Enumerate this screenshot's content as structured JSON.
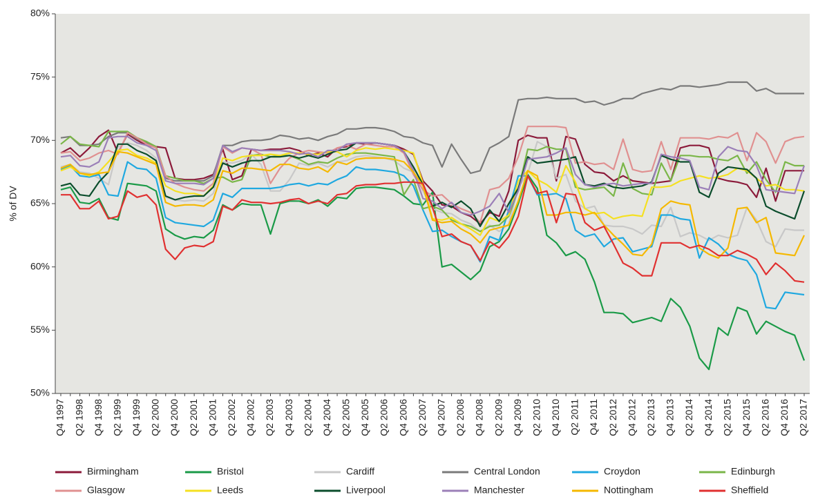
{
  "chart_data": {
    "type": "line",
    "y_label": "% of DV",
    "ylim": [
      50,
      80
    ],
    "yticks": [
      {
        "value": 50,
        "label": "50%"
      },
      {
        "value": 55,
        "label": "55%"
      },
      {
        "value": 60,
        "label": "60%"
      },
      {
        "value": 65,
        "label": "65%"
      },
      {
        "value": 70,
        "label": "70%"
      },
      {
        "value": 75,
        "label": "75%"
      },
      {
        "value": 80,
        "label": "80%"
      }
    ],
    "grid": false,
    "legend": "bottom",
    "categories": [
      "Q4 1997",
      null,
      "Q2 1998",
      null,
      "Q4 1998",
      null,
      "Q2 1999",
      null,
      "Q4 1999",
      null,
      "Q2 2000",
      null,
      "Q4 2000",
      null,
      "Q2 2001",
      null,
      "Q4 2001",
      null,
      "Q2 2002",
      null,
      "Q4 2002",
      null,
      "Q2 2003",
      null,
      "Q4 2003",
      null,
      "Q2 2004",
      null,
      "Q4 2004",
      null,
      "Q2 2005",
      null,
      "Q4 2005",
      null,
      "Q2 2006",
      null,
      "Q4 2006",
      null,
      "Q2 2007",
      null,
      "Q4 2007",
      null,
      "Q2 2008",
      null,
      "Q4 2008",
      null,
      "Q2 2009",
      null,
      "Q4 2009",
      null,
      "Q2 2010",
      null,
      "Q4 2010",
      null,
      "Q2 2011",
      null,
      "Q4 2011",
      null,
      "Q2 2012",
      null,
      "Q4 2012",
      null,
      "Q2 2013",
      null,
      "Q4 2013",
      null,
      "Q2 2014",
      null,
      "Q4 2014",
      null,
      "Q2 2015",
      null,
      "Q4 2015",
      null,
      "Q2 2016",
      null,
      "Q4 2016",
      null,
      "Q2 2017"
    ],
    "series": [
      {
        "name": "Birmingham",
        "color": "#8b1a3a",
        "values": [
          69.0,
          69.4,
          68.7,
          69.4,
          70.3,
          70.8,
          69.0,
          70.5,
          70.0,
          69.6,
          69.5,
          69.4,
          67.0,
          66.9,
          66.9,
          67.0,
          67.3,
          69.3,
          66.9,
          67.2,
          69.3,
          69.2,
          69.3,
          69.3,
          69.4,
          69.2,
          68.8,
          69.0,
          68.7,
          69.4,
          69.5,
          69.8,
          69.7,
          69.8,
          69.7,
          69.6,
          69.3,
          68.9,
          66.8,
          66.0,
          64.9,
          64.8,
          64.3,
          64.0,
          63.4,
          64.3,
          64.0,
          66.0,
          70.0,
          70.4,
          70.2,
          70.2,
          66.8,
          70.3,
          70.1,
          68.1,
          67.5,
          67.4,
          66.8,
          67.2,
          66.8,
          66.7,
          66.6,
          66.7,
          66.8,
          69.4,
          69.6,
          69.6,
          69.4,
          67.0,
          66.8,
          66.7,
          66.5,
          65.5,
          67.8,
          65.2,
          67.6,
          67.6,
          67.6
        ]
      },
      {
        "name": "Bristol",
        "color": "#1a9a47",
        "values": [
          66.1,
          66.3,
          65.1,
          65.0,
          65.4,
          63.9,
          63.7,
          66.6,
          66.5,
          66.4,
          66.0,
          63.0,
          62.5,
          62.2,
          62.4,
          62.3,
          62.9,
          64.9,
          64.5,
          65.0,
          64.9,
          64.9,
          62.6,
          65.0,
          65.2,
          65.2,
          65.0,
          65.3,
          64.8,
          65.5,
          65.4,
          66.2,
          66.3,
          66.3,
          66.2,
          66.1,
          65.6,
          65.0,
          64.9,
          65.9,
          60.0,
          60.2,
          59.6,
          59.0,
          59.7,
          61.6,
          62.0,
          63.0,
          65.0,
          67.3,
          66.2,
          62.5,
          61.9,
          60.9,
          61.2,
          60.6,
          58.8,
          56.4,
          56.4,
          56.3,
          55.6,
          55.8,
          56.0,
          55.7,
          57.5,
          56.8,
          55.3,
          52.8,
          51.9,
          55.2,
          54.6,
          56.8,
          56.5,
          54.7,
          55.7,
          55.3,
          54.9,
          54.6,
          52.6
        ]
      },
      {
        "name": "Cardiff",
        "color": "#c8c8c8",
        "values": [
          67.9,
          68.1,
          67.5,
          67.4,
          67.0,
          66.5,
          69.5,
          69.8,
          69.6,
          69.2,
          68.6,
          65.5,
          65.3,
          65.2,
          65.3,
          65.2,
          65.8,
          68.3,
          68.2,
          68.4,
          68.9,
          68.1,
          66.0,
          66.0,
          66.9,
          68.2,
          68.0,
          68.2,
          67.9,
          68.3,
          68.4,
          68.7,
          68.8,
          68.7,
          68.6,
          68.4,
          67.8,
          67.5,
          66.0,
          64.6,
          64.3,
          64.2,
          63.7,
          63.4,
          62.8,
          63.3,
          62.8,
          63.4,
          66.3,
          67.4,
          69.9,
          69.5,
          67.0,
          67.3,
          65.2,
          64.6,
          64.8,
          63.3,
          63.2,
          63.2,
          63.0,
          62.6,
          63.3,
          63.2,
          64.7,
          62.4,
          62.7,
          62.5,
          62.1,
          62.5,
          62.3,
          62.5,
          64.7,
          63.7,
          62.0,
          61.6,
          63.0,
          62.9,
          62.9
        ]
      },
      {
        "name": "Central London",
        "color": "#7a7a7a",
        "values": [
          70.2,
          70.3,
          69.6,
          69.6,
          69.7,
          70.3,
          70.6,
          70.6,
          70.1,
          69.8,
          69.4,
          67.0,
          66.8,
          66.8,
          66.8,
          66.8,
          67.2,
          69.6,
          69.6,
          69.9,
          70.0,
          70.0,
          70.1,
          70.4,
          70.3,
          70.1,
          70.2,
          70.0,
          70.3,
          70.5,
          70.9,
          70.9,
          71.0,
          71.0,
          70.9,
          70.7,
          70.3,
          70.2,
          69.8,
          69.6,
          67.9,
          69.7,
          68.5,
          67.4,
          67.6,
          69.4,
          69.8,
          70.3,
          73.2,
          73.3,
          73.3,
          73.4,
          73.3,
          73.3,
          73.3,
          73.0,
          73.1,
          72.8,
          73.0,
          73.3,
          73.3,
          73.7,
          73.9,
          74.1,
          74.0,
          74.3,
          74.3,
          74.2,
          74.3,
          74.4,
          74.6,
          74.6,
          74.6,
          73.9,
          74.1,
          73.7,
          73.7,
          73.7,
          73.7
        ]
      },
      {
        "name": "Croydon",
        "color": "#1fa8e0",
        "values": [
          67.7,
          68.0,
          67.2,
          67.1,
          67.3,
          65.7,
          65.6,
          68.3,
          67.8,
          67.7,
          67.0,
          63.9,
          63.5,
          63.4,
          63.3,
          63.2,
          63.7,
          65.8,
          65.5,
          66.2,
          66.2,
          66.2,
          66.2,
          66.3,
          66.5,
          66.6,
          66.4,
          66.6,
          66.5,
          66.9,
          67.2,
          67.9,
          67.7,
          67.7,
          67.6,
          67.5,
          67.2,
          66.4,
          64.5,
          62.8,
          62.9,
          62.4,
          62.0,
          61.7,
          60.4,
          62.4,
          62.1,
          64.5,
          67.2,
          67.2,
          65.7,
          65.7,
          65.8,
          65.4,
          62.9,
          62.4,
          62.6,
          61.6,
          62.2,
          62.3,
          61.2,
          61.4,
          61.6,
          64.1,
          64.1,
          63.8,
          63.7,
          60.7,
          62.3,
          61.8,
          61.0,
          60.7,
          60.5,
          59.4,
          56.8,
          56.7,
          58.0,
          57.9,
          57.8
        ]
      },
      {
        "name": "Edinburgh",
        "color": "#7ab648",
        "values": [
          69.7,
          70.3,
          69.7,
          69.6,
          69.5,
          70.7,
          70.7,
          70.7,
          70.2,
          69.9,
          69.5,
          67.2,
          67.0,
          66.8,
          66.8,
          66.6,
          67.0,
          67.1,
          66.7,
          66.9,
          68.8,
          68.9,
          68.7,
          68.8,
          68.8,
          68.5,
          68.1,
          68.3,
          68.2,
          68.6,
          68.9,
          69.0,
          69.0,
          68.9,
          68.8,
          68.7,
          65.7,
          66.9,
          64.6,
          64.8,
          64.5,
          63.7,
          63.4,
          63.2,
          62.8,
          63.2,
          63.3,
          64.0,
          66.1,
          69.3,
          69.2,
          69.5,
          69.3,
          69.3,
          66.3,
          66.1,
          66.2,
          66.3,
          65.6,
          68.2,
          66.2,
          65.8,
          65.7,
          68.2,
          66.8,
          68.8,
          68.8,
          68.7,
          68.7,
          68.5,
          68.4,
          68.8,
          67.4,
          68.3,
          66.9,
          65.9,
          68.3,
          68.0,
          68.0
        ]
      },
      {
        "name": "Glasgow",
        "color": "#e09090",
        "values": [
          69.0,
          69.1,
          68.4,
          68.6,
          69.0,
          69.2,
          68.9,
          70.6,
          70.2,
          69.7,
          69.4,
          67.2,
          66.6,
          66.3,
          66.1,
          66.0,
          66.6,
          69.5,
          69.0,
          69.4,
          69.3,
          68.9,
          66.6,
          67.8,
          68.6,
          69.0,
          69.2,
          69.1,
          69.0,
          69.4,
          69.6,
          69.3,
          69.7,
          69.6,
          69.5,
          69.5,
          69.0,
          67.3,
          66.1,
          65.6,
          65.7,
          65.0,
          64.6,
          64.3,
          63.5,
          66.1,
          66.3,
          67.0,
          68.7,
          71.1,
          71.1,
          71.1,
          71.1,
          71.0,
          68.2,
          68.3,
          68.1,
          68.2,
          67.7,
          70.1,
          67.7,
          67.5,
          67.6,
          69.9,
          67.7,
          70.2,
          70.2,
          70.2,
          70.1,
          70.3,
          70.2,
          70.6,
          68.4,
          70.6,
          69.9,
          68.2,
          69.9,
          70.2,
          70.3
        ]
      },
      {
        "name": "Leeds",
        "color": "#f5e020",
        "values": [
          67.6,
          67.9,
          67.4,
          67.2,
          67.5,
          68.3,
          69.2,
          69.3,
          68.8,
          68.6,
          68.2,
          66.4,
          66.0,
          65.8,
          65.8,
          65.6,
          66.4,
          68.6,
          68.4,
          68.7,
          68.8,
          68.8,
          68.9,
          68.8,
          69.0,
          69.0,
          68.9,
          68.9,
          69.1,
          69.1,
          68.7,
          69.2,
          69.4,
          69.3,
          69.4,
          69.3,
          69.2,
          69.0,
          66.6,
          63.8,
          63.7,
          63.9,
          63.4,
          63.0,
          62.5,
          63.9,
          63.6,
          64.1,
          66.8,
          67.6,
          66.9,
          66.5,
          65.9,
          68.0,
          66.7,
          64.6,
          64.2,
          64.3,
          63.8,
          64.0,
          64.1,
          64.0,
          66.3,
          66.3,
          66.4,
          66.8,
          67.0,
          67.2,
          67.0,
          67.1,
          67.3,
          67.8,
          67.6,
          67.0,
          66.4,
          66.5,
          66.1,
          66.1,
          66.0
        ]
      },
      {
        "name": "Liverpool",
        "color": "#0b4d2c",
        "values": [
          66.4,
          66.6,
          65.7,
          65.6,
          66.7,
          67.5,
          69.7,
          69.7,
          69.2,
          68.9,
          68.4,
          65.6,
          65.3,
          65.5,
          65.6,
          65.6,
          66.3,
          68.2,
          67.9,
          68.2,
          68.4,
          68.4,
          68.7,
          68.7,
          68.8,
          68.6,
          68.8,
          68.6,
          68.9,
          69.2,
          69.3,
          69.8,
          69.8,
          69.8,
          69.7,
          69.6,
          69.1,
          67.9,
          66.5,
          64.8,
          65.1,
          64.7,
          65.2,
          64.6,
          63.2,
          64.5,
          63.6,
          65.0,
          66.2,
          68.7,
          68.2,
          68.3,
          68.4,
          68.5,
          68.7,
          66.5,
          66.4,
          66.6,
          66.3,
          66.2,
          66.3,
          66.4,
          66.7,
          68.8,
          68.5,
          68.3,
          68.3,
          65.9,
          65.5,
          67.4,
          67.9,
          67.8,
          67.7,
          67.0,
          64.8,
          64.4,
          64.1,
          63.8,
          66.0
        ]
      },
      {
        "name": "Manchester",
        "color": "#9b7fb8",
        "values": [
          68.7,
          68.8,
          68.0,
          67.9,
          68.3,
          70.2,
          70.3,
          70.3,
          69.8,
          69.6,
          69.2,
          66.8,
          66.6,
          66.6,
          66.6,
          66.5,
          67.0,
          69.6,
          69.1,
          69.4,
          69.3,
          69.2,
          69.2,
          69.2,
          69.1,
          68.9,
          69.0,
          68.7,
          69.2,
          69.2,
          69.7,
          69.8,
          69.8,
          69.8,
          69.7,
          69.6,
          69.1,
          67.6,
          65.4,
          65.2,
          64.6,
          65.1,
          64.3,
          64.1,
          64.4,
          64.8,
          65.8,
          64.3,
          66.0,
          68.5,
          68.6,
          68.7,
          69.0,
          69.4,
          67.3,
          66.5,
          66.3,
          66.5,
          66.6,
          66.4,
          66.5,
          66.6,
          66.6,
          68.9,
          68.7,
          68.6,
          68.4,
          66.3,
          66.1,
          68.7,
          69.5,
          69.2,
          69.1,
          68.0,
          66.1,
          66.0,
          65.9,
          65.8,
          68.0
        ]
      },
      {
        "name": "Nottingham",
        "color": "#f5b800",
        "values": [
          67.8,
          68.1,
          67.4,
          67.3,
          67.4,
          67.5,
          69.1,
          69.0,
          68.7,
          68.4,
          68.1,
          65.1,
          64.8,
          64.9,
          64.9,
          64.8,
          65.3,
          67.6,
          67.4,
          67.8,
          67.8,
          67.7,
          67.6,
          68.1,
          68.1,
          67.8,
          67.7,
          67.9,
          67.5,
          68.3,
          68.1,
          68.5,
          68.6,
          68.6,
          68.6,
          68.5,
          68.3,
          67.5,
          66.4,
          63.7,
          63.5,
          63.6,
          63.0,
          62.6,
          61.9,
          62.9,
          63.1,
          63.3,
          65.2,
          67.6,
          67.2,
          64.1,
          64.1,
          64.3,
          64.3,
          64.1,
          64.3,
          63.3,
          62.5,
          61.8,
          61.0,
          60.9,
          61.8,
          64.6,
          65.2,
          65.0,
          64.9,
          61.5,
          61.0,
          60.7,
          61.5,
          64.6,
          64.7,
          63.5,
          63.9,
          61.1,
          61.0,
          60.9,
          62.5
        ]
      },
      {
        "name": "Sheffield",
        "color": "#e03030",
        "values": [
          65.7,
          65.7,
          64.6,
          64.6,
          65.2,
          63.8,
          64.0,
          66.0,
          65.5,
          65.7,
          64.9,
          61.4,
          60.6,
          61.5,
          61.7,
          61.6,
          62.0,
          64.8,
          64.5,
          65.3,
          65.1,
          65.1,
          65.0,
          65.1,
          65.3,
          65.4,
          65.0,
          65.2,
          65.0,
          65.7,
          65.8,
          66.4,
          66.5,
          66.5,
          66.6,
          66.6,
          66.7,
          66.7,
          66.6,
          64.7,
          62.4,
          62.6,
          62.0,
          61.7,
          60.5,
          62.0,
          61.5,
          62.4,
          64.0,
          67.2,
          65.8,
          66.0,
          63.5,
          65.8,
          65.7,
          63.5,
          62.9,
          63.2,
          61.8,
          60.3,
          59.9,
          59.3,
          59.3,
          61.9,
          61.9,
          61.9,
          61.5,
          61.7,
          61.4,
          60.9,
          60.9,
          61.3,
          61.0,
          60.6,
          59.4,
          60.3,
          59.7,
          58.9,
          58.8
        ]
      }
    ]
  }
}
